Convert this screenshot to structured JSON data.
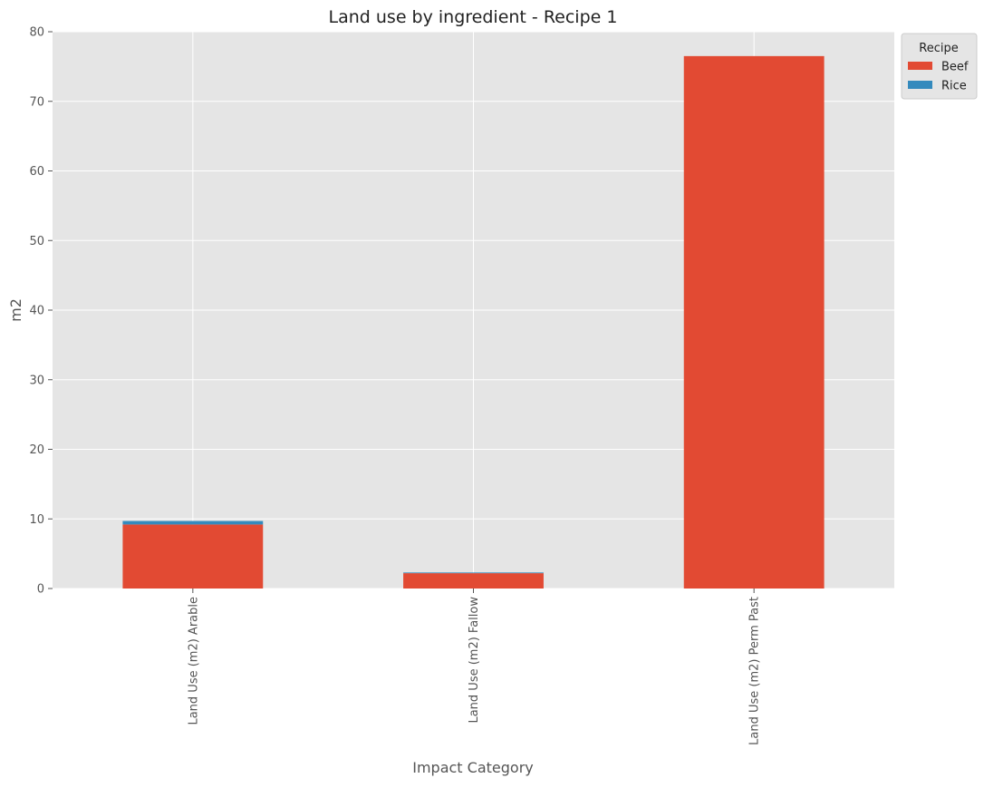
{
  "chart_data": {
    "type": "bar",
    "stacked": true,
    "title": "Land use by ingredient - Recipe 1",
    "xlabel": "Impact Category",
    "ylabel": "m2",
    "categories": [
      "Land Use (m2) Arable",
      "Land Use (m2) Fallow",
      "Land Use (m2) Perm Past"
    ],
    "series": [
      {
        "name": "Beef",
        "values": [
          9.2,
          2.2,
          76.5
        ],
        "color": "#E24A33"
      },
      {
        "name": "Rice",
        "values": [
          0.5,
          0.1,
          0.0
        ],
        "color": "#348ABD"
      }
    ],
    "ylim": [
      0,
      80
    ],
    "yticks": [
      0,
      10,
      20,
      30,
      40,
      50,
      60,
      70,
      80
    ],
    "grid": true,
    "legend": {
      "title": "Recipe",
      "placement": "outside-top-right"
    }
  }
}
